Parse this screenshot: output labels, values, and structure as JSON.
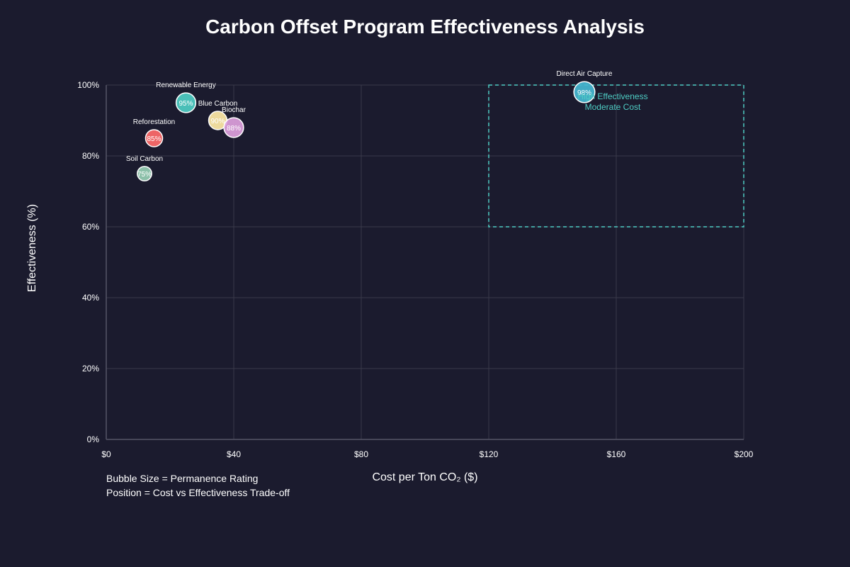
{
  "chart_data": {
    "type": "scatter",
    "title": "Carbon Offset Program Effectiveness Analysis",
    "xlabel": "Cost per Ton CO₂ ($)",
    "ylabel": "Effectiveness (%)",
    "xlim": [
      0,
      200
    ],
    "ylim": [
      0,
      100
    ],
    "x_ticks": [
      0,
      40,
      80,
      120,
      160,
      200
    ],
    "x_tick_labels": [
      "$0",
      "$40",
      "$80",
      "$120",
      "$160",
      "$200"
    ],
    "y_ticks": [
      0,
      20,
      40,
      60,
      80,
      100
    ],
    "y_tick_labels": [
      "0%",
      "20%",
      "40%",
      "60%",
      "80%",
      "100%"
    ],
    "grid": true,
    "points": [
      {
        "name": "Renewable Energy",
        "cost": 25,
        "effectiveness": 95,
        "label": "95%",
        "color": "#4ecdc4",
        "permanence": 7.5
      },
      {
        "name": "Blue Carbon",
        "cost": 35,
        "effectiveness": 90,
        "label": "90%",
        "color": "#ffeaa7",
        "permanence": 7
      },
      {
        "name": "Biochar",
        "cost": 40,
        "effectiveness": 88,
        "label": "88%",
        "color": "#dda0dd",
        "permanence": 7.5
      },
      {
        "name": "Reforestation",
        "cost": 15,
        "effectiveness": 85,
        "label": "85%",
        "color": "#ff6b6b",
        "permanence": 6.5
      },
      {
        "name": "Soil Carbon",
        "cost": 12,
        "effectiveness": 75,
        "label": "75%",
        "color": "#96ceb4",
        "permanence": 5.5
      },
      {
        "name": "Direct Air Capture",
        "cost": 150,
        "effectiveness": 98,
        "label": "98%",
        "color": "#45b7d1",
        "permanence": 8
      }
    ],
    "highlight_region": {
      "x_range": [
        120,
        200
      ],
      "y_range": [
        60,
        100
      ],
      "label_lines": [
        "High Effectiveness",
        "Moderate Cost"
      ],
      "color": "#4ecdc4"
    }
  },
  "notes": {
    "line1": "Bubble Size = Permanence Rating",
    "line2": "Position = Cost vs Effectiveness Trade-off"
  },
  "colors": {
    "background": "#1b1b2e",
    "grid": "#3a3a4a",
    "axis": "#555566",
    "text": "#ffffff"
  }
}
